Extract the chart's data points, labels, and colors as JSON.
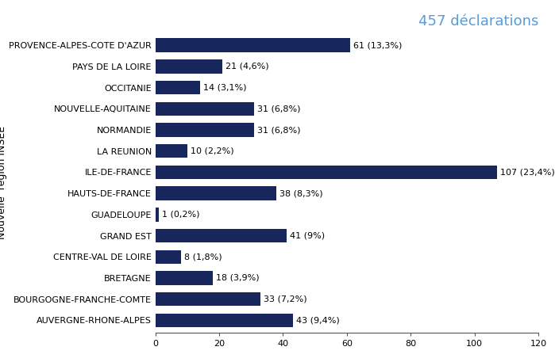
{
  "categories": [
    "AUVERGNE-RHONE-ALPES",
    "BOURGOGNE-FRANCHE-COMTE",
    "BRETAGNE",
    "CENTRE-VAL DE LOIRE",
    "GRAND EST",
    "GUADELOUPE",
    "HAUTS-DE-FRANCE",
    "ILE-DE-FRANCE",
    "LA REUNION",
    "NORMANDIE",
    "NOUVELLE-AQUITAINE",
    "OCCITANIE",
    "PAYS DE LA LOIRE",
    "PROVENCE-ALPES-COTE D'AZUR"
  ],
  "values": [
    43,
    33,
    18,
    8,
    41,
    1,
    38,
    107,
    10,
    31,
    31,
    14,
    21,
    61
  ],
  "labels": [
    "43 (9,4%)",
    "33 (7,2%)",
    "18 (3,9%)",
    "8 (1,8%)",
    "41 (9%)",
    "1 (0,2%)",
    "38 (8,3%)",
    "107 (23,4%)",
    "10 (2,2%)",
    "31 (6,8%)",
    "31 (6,8%)",
    "14 (3,1%)",
    "21 (4,6%)",
    "61 (13,3%)"
  ],
  "bar_color": "#17275e",
  "title": "457 déclarations",
  "title_color": "#5b9bd5",
  "ylabel_line1": "Nouvelle",
  "ylabel_line2": "région INSEE",
  "xlim": [
    0,
    120
  ],
  "xticks": [
    0,
    20,
    40,
    60,
    80,
    100,
    120
  ],
  "background_color": "#ffffff",
  "label_fontsize": 8,
  "tick_fontsize": 8,
  "title_fontsize": 13,
  "ylabel_fontsize": 9,
  "bar_height": 0.65
}
